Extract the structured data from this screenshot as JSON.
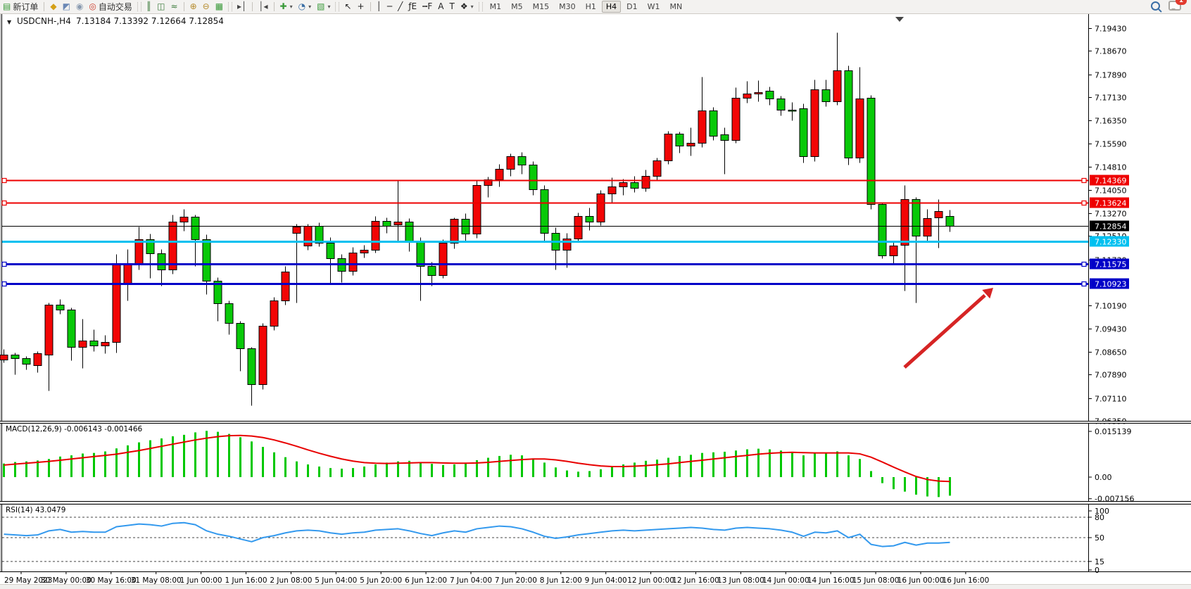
{
  "toolbar": {
    "items": [
      {
        "name": "new-order-button",
        "glyph": "▤",
        "glyph_color": "#3a9a3a",
        "label": "新订单"
      },
      {
        "sep": true
      },
      {
        "name": "styler-button",
        "glyph": "◆",
        "glyph_color": "#d4a017"
      },
      {
        "name": "profiles-button",
        "glyph": "◩",
        "glyph_color": "#6b88b5"
      },
      {
        "name": "market-signals-button",
        "glyph": "◉",
        "glyph_color": "#8a9bb0"
      },
      {
        "name": "autotrading-button",
        "glyph": "◎",
        "glyph_color": "#cc3b2a",
        "label": "自动交易"
      },
      {
        "grip": true
      },
      {
        "name": "bar-chart-mode-button",
        "glyph": "║",
        "glyph_color": "#3a7a3a"
      },
      {
        "name": "candlestick-mode-button",
        "glyph": "◫",
        "glyph_color": "#3a7a3a"
      },
      {
        "name": "line-chart-mode-button",
        "glyph": "≈",
        "glyph_color": "#3a7a3a"
      },
      {
        "sep": true
      },
      {
        "name": "zoom-in-button",
        "glyph": "⊕",
        "glyph_color": "#b58a2a"
      },
      {
        "name": "zoom-out-button",
        "glyph": "⊖",
        "glyph_color": "#b58a2a"
      },
      {
        "name": "tile-windows-button",
        "glyph": "▦",
        "glyph_color": "#3a9a3a"
      },
      {
        "grip": true
      },
      {
        "name": "auto-scroll-button",
        "glyph": "▸│",
        "glyph_color": "#444"
      },
      {
        "sep": true
      },
      {
        "name": "chart-shift-button",
        "glyph": "│◂",
        "glyph_color": "#444"
      },
      {
        "sep": true
      },
      {
        "name": "indicators-button",
        "glyph": "✚",
        "glyph_color": "#3a9a3a",
        "caret": true
      },
      {
        "name": "periods-button",
        "glyph": "◔",
        "glyph_color": "#3a6ea5",
        "caret": true
      },
      {
        "name": "templates-button",
        "glyph": "▧",
        "glyph_color": "#3a9a3a",
        "caret": true
      },
      {
        "grip": true
      },
      {
        "name": "cursor-button",
        "glyph": "↖",
        "glyph_color": "#222"
      },
      {
        "name": "crosshair-button",
        "glyph": "+",
        "glyph_color": "#222"
      },
      {
        "sep": true
      },
      {
        "name": "vertical-line-button",
        "glyph": "│",
        "glyph_color": "#222"
      },
      {
        "name": "horizontal-line-button",
        "glyph": "─",
        "glyph_color": "#222"
      },
      {
        "name": "trendline-button",
        "glyph": "╱",
        "glyph_color": "#222"
      },
      {
        "name": "fibonacci-button",
        "glyph": "ƒE",
        "glyph_color": "#222"
      },
      {
        "name": "fibonacci-fan-button",
        "glyph": "┅F",
        "glyph_color": "#222"
      },
      {
        "name": "text-button",
        "glyph": "A",
        "glyph_color": "#222"
      },
      {
        "name": "text-label-button",
        "glyph": "T",
        "glyph_color": "#222"
      },
      {
        "name": "arrows-button",
        "glyph": "❖",
        "glyph_color": "#222",
        "caret": true
      },
      {
        "grip": true
      }
    ],
    "timeframes": {
      "options": [
        "M1",
        "M5",
        "M15",
        "M30",
        "H1",
        "H4",
        "D1",
        "W1",
        "MN"
      ],
      "active": "H4"
    },
    "right": {
      "notification_count": "1"
    }
  },
  "chart": {
    "title": {
      "dropdown_icon": "▼",
      "symbol_period": "USDCNH-,H4",
      "ohlc_text": "7.13184 7.13392 7.12664 7.12854"
    }
  },
  "chart_data": {
    "type": "candlestick",
    "symbol": "USDCNH-",
    "timeframe": "H4",
    "convention": "red=bullish, green=bearish (CN)",
    "last_bar": {
      "open": 7.13184,
      "high": 7.13392,
      "low": 7.12664,
      "close": 7.12854
    },
    "ylim": [
      7.0635,
      7.1943
    ],
    "price_axis_ticks": [
      "7.19430",
      "7.18670",
      "7.17890",
      "7.17130",
      "7.16350",
      "7.15590",
      "7.14810",
      "7.14050",
      "7.13270",
      "7.12510",
      "7.11730",
      "7.10190",
      "7.09430",
      "7.08650",
      "7.07890",
      "7.07110",
      "7.06350"
    ],
    "time_labels": [
      "29 May 2023",
      "30 May 00:00",
      "30 May 16:00",
      "31 May 08:00",
      "1 Jun 00:00",
      "1 Jun 16:00",
      "2 Jun 08:00",
      "5 Jun 04:00",
      "5 Jun 20:00",
      "6 Jun 12:00",
      "7 Jun 04:00",
      "7 Jun 20:00",
      "8 Jun 12:00",
      "9 Jun 04:00",
      "12 Jun 00:00",
      "12 Jun 16:00",
      "13 Jun 08:00",
      "14 Jun 00:00",
      "14 Jun 16:00",
      "15 Jun 08:00",
      "16 Jun 00:00",
      "16 Jun 16:00"
    ],
    "candles_ohlc": [
      [
        7.084,
        7.0875,
        7.083,
        7.0856
      ],
      [
        7.0856,
        7.0863,
        7.079,
        7.0843
      ],
      [
        7.0843,
        7.0852,
        7.0806,
        7.0826
      ],
      [
        7.082,
        7.0868,
        7.0798,
        7.086
      ],
      [
        7.0856,
        7.103,
        7.0735,
        7.1022
      ],
      [
        7.1022,
        7.1041,
        7.0992,
        7.1006
      ],
      [
        7.1006,
        7.1012,
        7.0838,
        7.0881
      ],
      [
        7.0881,
        7.0976,
        7.0812,
        7.0902
      ],
      [
        7.0902,
        7.0941,
        7.0868,
        7.0886
      ],
      [
        7.0886,
        7.0922,
        7.086,
        7.0898
      ],
      [
        7.0898,
        7.119,
        7.0862,
        7.1161
      ],
      [
        7.109,
        7.1208,
        7.1036,
        7.116
      ],
      [
        7.116,
        7.1281,
        7.114,
        7.124
      ],
      [
        7.124,
        7.1258,
        7.1112,
        7.1192
      ],
      [
        7.1192,
        7.1206,
        7.1086,
        7.114
      ],
      [
        7.114,
        7.1321,
        7.1124,
        7.1298
      ],
      [
        7.1298,
        7.1341,
        7.1268,
        7.1316
      ],
      [
        7.1316,
        7.1323,
        7.115,
        7.1241
      ],
      [
        7.1241,
        7.1256,
        7.1058,
        7.1101
      ],
      [
        7.1101,
        7.1113,
        7.0968,
        7.1026
      ],
      [
        7.1026,
        7.1036,
        7.0924,
        7.0961
      ],
      [
        7.0961,
        7.0969,
        7.0801,
        7.0876
      ],
      [
        7.0876,
        7.0882,
        7.0686,
        7.0756
      ],
      [
        7.0756,
        7.096,
        7.074,
        7.0951
      ],
      [
        7.0951,
        7.1048,
        7.0938,
        7.1037
      ],
      [
        7.1037,
        7.1152,
        7.1021,
        7.1131
      ],
      [
        7.1262,
        7.1292,
        7.1028,
        7.1281
      ],
      [
        7.122,
        7.1291,
        7.1205,
        7.1284
      ],
      [
        7.1284,
        7.1296,
        7.1216,
        7.1229
      ],
      [
        7.1229,
        7.1247,
        7.1092,
        7.1177
      ],
      [
        7.1177,
        7.119,
        7.1098,
        7.1134
      ],
      [
        7.1134,
        7.1213,
        7.112,
        7.1196
      ],
      [
        7.1196,
        7.1222,
        7.118,
        7.1205
      ],
      [
        7.1205,
        7.1318,
        7.1196,
        7.13
      ],
      [
        7.13,
        7.1312,
        7.1262,
        7.1285
      ],
      [
        7.129,
        7.1437,
        7.1235,
        7.1298
      ],
      [
        7.1298,
        7.131,
        7.1201,
        7.1236
      ],
      [
        7.1236,
        7.1248,
        7.1035,
        7.1152
      ],
      [
        7.1152,
        7.1166,
        7.1085,
        7.1121
      ],
      [
        7.1121,
        7.124,
        7.111,
        7.1228
      ],
      [
        7.1228,
        7.1312,
        7.121,
        7.1307
      ],
      [
        7.1307,
        7.1326,
        7.1236,
        7.1258
      ],
      [
        7.1258,
        7.1437,
        7.1244,
        7.142
      ],
      [
        7.142,
        7.1448,
        7.138,
        7.144
      ],
      [
        7.144,
        7.149,
        7.1416,
        7.1474
      ],
      [
        7.1474,
        7.1525,
        7.1451,
        7.1516
      ],
      [
        7.1516,
        7.153,
        7.1458,
        7.1488
      ],
      [
        7.1488,
        7.15,
        7.1387,
        7.1406
      ],
      [
        7.1406,
        7.142,
        7.1232,
        7.1262
      ],
      [
        7.1262,
        7.128,
        7.114,
        7.1204
      ],
      [
        7.1204,
        7.126,
        7.1146,
        7.1242
      ],
      [
        7.1242,
        7.133,
        7.123,
        7.1318
      ],
      [
        7.1318,
        7.1345,
        7.127,
        7.1299
      ],
      [
        7.1299,
        7.1404,
        7.1286,
        7.1392
      ],
      [
        7.1392,
        7.1445,
        7.1364,
        7.1416
      ],
      [
        7.1416,
        7.1442,
        7.1388,
        7.143
      ],
      [
        7.143,
        7.1452,
        7.1398,
        7.1412
      ],
      [
        7.1412,
        7.1472,
        7.14,
        7.1452
      ],
      [
        7.1452,
        7.1512,
        7.1438,
        7.1502
      ],
      [
        7.1502,
        7.16,
        7.149,
        7.1591
      ],
      [
        7.1591,
        7.1598,
        7.1528,
        7.1552
      ],
      [
        7.1552,
        7.1612,
        7.1518,
        7.156
      ],
      [
        7.156,
        7.1781,
        7.1548,
        7.1668
      ],
      [
        7.1668,
        7.168,
        7.157,
        7.1584
      ],
      [
        7.159,
        7.1612,
        7.1457,
        7.157
      ],
      [
        7.157,
        7.1746,
        7.156,
        7.171
      ],
      [
        7.171,
        7.1768,
        7.1695,
        7.1726
      ],
      [
        7.1726,
        7.177,
        7.17,
        7.173
      ],
      [
        7.1734,
        7.1748,
        7.1688,
        7.1708
      ],
      [
        7.1708,
        7.1718,
        7.1652,
        7.1672
      ],
      [
        7.1672,
        7.1696,
        7.1635,
        7.1668
      ],
      [
        7.1675,
        7.1692,
        7.1496,
        7.1516
      ],
      [
        7.1516,
        7.1772,
        7.15,
        7.1739
      ],
      [
        7.174,
        7.1772,
        7.1682,
        7.17
      ],
      [
        7.17,
        7.193,
        7.1688,
        7.1802
      ],
      [
        7.1802,
        7.1818,
        7.1489,
        7.1512
      ],
      [
        7.1512,
        7.1814,
        7.1495,
        7.1709
      ],
      [
        7.1712,
        7.172,
        7.134,
        7.1357
      ],
      [
        7.1357,
        7.1362,
        7.1177,
        7.1187
      ],
      [
        7.1187,
        7.1232,
        7.116,
        7.1219
      ],
      [
        7.1221,
        7.142,
        7.1068,
        7.1373
      ],
      [
        7.1373,
        7.1381,
        7.1028,
        7.1251
      ],
      [
        7.1251,
        7.134,
        7.123,
        7.131
      ],
      [
        7.1312,
        7.1374,
        7.1212,
        7.1333
      ],
      [
        7.13184,
        7.13392,
        7.12664,
        7.12854
      ]
    ],
    "levels": [
      {
        "label": "7.14369",
        "price": 7.14369,
        "color": "#ee0000",
        "width": 2,
        "handles": true,
        "text_color": "#fff"
      },
      {
        "label": "7.13624",
        "price": 7.13624,
        "color": "#ee0000",
        "width": 2,
        "handles": true,
        "text_color": "#fff"
      },
      {
        "label": "7.12330",
        "price": 7.1233,
        "color": "#00c0f0",
        "width": 3,
        "handles": false,
        "text_color": "#fff"
      },
      {
        "label": "7.11575",
        "price": 7.11575,
        "color": "#0202c8",
        "width": 3,
        "handles": true,
        "text_color": "#fff"
      },
      {
        "label": "7.10923",
        "price": 7.10923,
        "color": "#0202c8",
        "width": 3,
        "handles": true,
        "text_color": "#fff"
      }
    ],
    "current_price": {
      "label": "7.12854",
      "price": 7.12854,
      "color": "#000000"
    },
    "macd": {
      "name": "MACD(12,26,9)",
      "values_text": "-0.006143 -0.001466",
      "axis_ticks": [
        {
          "label": "0.015139",
          "value": 0.015139
        },
        {
          "label": "0.00",
          "value": 0.0
        },
        {
          "label": "-0.007156",
          "value": -0.007156
        }
      ],
      "histogram": [
        0.0045,
        0.005,
        0.0052,
        0.0055,
        0.006,
        0.0068,
        0.0072,
        0.0078,
        0.008,
        0.0085,
        0.0095,
        0.0105,
        0.0115,
        0.0122,
        0.0128,
        0.0135,
        0.014,
        0.0148,
        0.0153,
        0.015,
        0.0143,
        0.0132,
        0.0118,
        0.01,
        0.0082,
        0.0066,
        0.0052,
        0.0042,
        0.0035,
        0.003,
        0.0028,
        0.003,
        0.0035,
        0.0042,
        0.0048,
        0.0052,
        0.0054,
        0.005,
        0.0044,
        0.004,
        0.0042,
        0.0048,
        0.0056,
        0.0064,
        0.007,
        0.0074,
        0.0072,
        0.0062,
        0.0048,
        0.0032,
        0.0022,
        0.0018,
        0.002,
        0.0026,
        0.0034,
        0.0042,
        0.0048,
        0.0054,
        0.0058,
        0.0064,
        0.007,
        0.0074,
        0.008,
        0.0082,
        0.0084,
        0.0088,
        0.0092,
        0.0094,
        0.0092,
        0.0088,
        0.0082,
        0.0072,
        0.0078,
        0.008,
        0.0085,
        0.0072,
        0.006,
        0.002,
        -0.002,
        -0.004,
        -0.0048,
        -0.0058,
        -0.0064,
        -0.0066,
        -0.006143
      ],
      "signal": [
        0.004,
        0.0043,
        0.0046,
        0.0049,
        0.0052,
        0.0056,
        0.006,
        0.0064,
        0.0068,
        0.0072,
        0.0076,
        0.0082,
        0.0088,
        0.0095,
        0.0102,
        0.0109,
        0.0116,
        0.0123,
        0.0129,
        0.0134,
        0.0137,
        0.0138,
        0.0136,
        0.0131,
        0.0123,
        0.0113,
        0.0102,
        0.009,
        0.0079,
        0.0069,
        0.006,
        0.0053,
        0.0048,
        0.0046,
        0.0045,
        0.0046,
        0.0047,
        0.0048,
        0.0048,
        0.0047,
        0.0046,
        0.0046,
        0.0047,
        0.0049,
        0.0052,
        0.0055,
        0.0058,
        0.006,
        0.006,
        0.0057,
        0.0052,
        0.0046,
        0.0041,
        0.0037,
        0.0035,
        0.0035,
        0.0036,
        0.0038,
        0.0041,
        0.0044,
        0.0048,
        0.0052,
        0.0056,
        0.006,
        0.0064,
        0.0068,
        0.0072,
        0.0076,
        0.0079,
        0.0081,
        0.0082,
        0.0081,
        0.008,
        0.008,
        0.008,
        0.008,
        0.0077,
        0.0066,
        0.005,
        0.0033,
        0.0017,
        0.0002,
        -0.0008,
        -0.0013,
        -0.001466
      ]
    },
    "rsi": {
      "name": "RSI(14)",
      "value_text": "43.0479",
      "axis_ticks": [
        {
          "label": "100",
          "value": 100
        },
        {
          "label": "80",
          "value": 80
        },
        {
          "label": "50",
          "value": 50
        },
        {
          "label": "15",
          "value": 15
        },
        {
          "label": "0",
          "value": 0
        }
      ],
      "dashed_levels": [
        80,
        50,
        15
      ],
      "series": [
        55,
        54,
        53,
        54,
        60,
        62,
        58,
        59,
        58,
        58,
        66,
        68,
        70,
        69,
        67,
        71,
        72,
        69,
        60,
        55,
        52,
        48,
        44,
        50,
        53,
        57,
        60,
        61,
        60,
        57,
        55,
        57,
        58,
        61,
        62,
        63,
        60,
        56,
        53,
        57,
        60,
        58,
        63,
        65,
        67,
        66,
        63,
        58,
        52,
        49,
        51,
        54,
        56,
        58,
        60,
        61,
        60,
        61,
        62,
        63,
        64,
        65,
        64,
        62,
        61,
        64,
        65,
        64,
        63,
        61,
        58,
        52,
        58,
        57,
        60,
        50,
        55,
        40,
        37,
        38,
        43,
        39,
        42,
        42,
        43.05
      ]
    },
    "arrow_annotation": {
      "from": [
        1285,
        522
      ],
      "to": [
        1411,
        409
      ],
      "color": "#d62424"
    },
    "colors": {
      "bull_body": "#f20505",
      "bear_body": "#08c908",
      "wick": "#000000",
      "macd_bar": "#00c800",
      "macd_signal": "#e80000",
      "rsi_line": "#3399ee",
      "axis_text": "#000000"
    }
  }
}
